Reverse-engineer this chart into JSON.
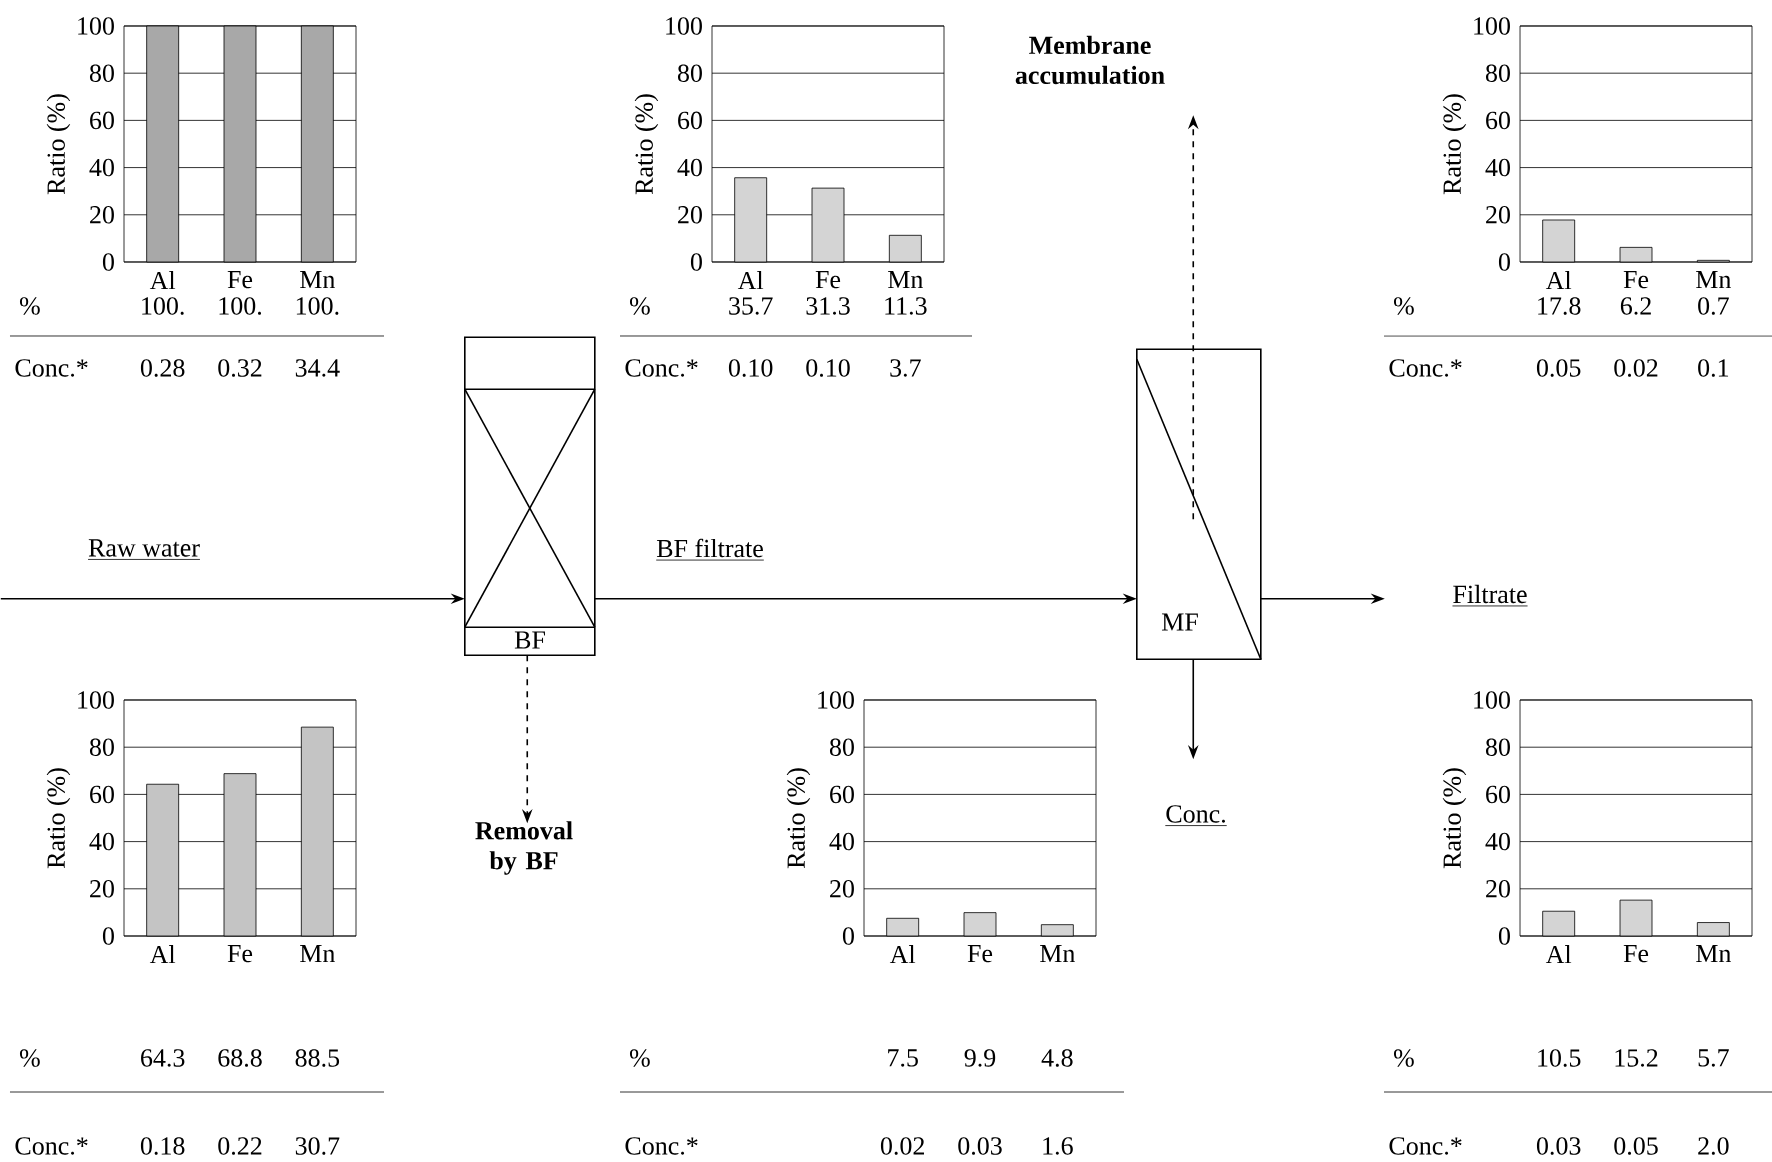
{
  "chart_data": [
    {
      "type": "bar",
      "ylabel": "Ratio (%)",
      "categories": [
        "Al",
        "Fe",
        "Mn"
      ],
      "values": [
        100,
        100,
        100
      ],
      "value_labels": [
        "100.",
        "100.",
        "100."
      ],
      "color": "#a8a8a8",
      "ylim": [
        0,
        100
      ],
      "yticks": [
        0,
        20,
        40,
        60,
        80,
        100
      ],
      "grid": "y",
      "annotations": [
        "%",
        "Conc.*",
        "0.28",
        "0.32",
        "34.4"
      ]
    },
    {
      "type": "bar",
      "ylabel": "Ratio (%)",
      "categories": [
        "Al",
        "Fe",
        "Mn"
      ],
      "values": [
        35.7,
        31.3,
        11.3
      ],
      "value_labels": [
        "35.7",
        "31.3",
        "11.3"
      ],
      "color": "#d4d4d4",
      "ylim": [
        0,
        100
      ],
      "yticks": [
        0,
        20,
        40,
        60,
        80,
        100
      ],
      "grid": "y",
      "annotations": [
        "%",
        "Conc.*",
        "0.10",
        "0.10",
        "3.7"
      ]
    },
    {
      "type": "bar",
      "ylabel": "Ratio (%)",
      "categories": [
        "Al",
        "Fe",
        "Mn"
      ],
      "values": [
        17.8,
        6.2,
        0.7
      ],
      "value_labels": [
        "17.8",
        "6.2",
        "0.7"
      ],
      "color": "#d4d4d4",
      "ylim": [
        0,
        100
      ],
      "yticks": [
        0,
        20,
        40,
        60,
        80,
        100
      ],
      "grid": "y",
      "annotations": [
        "%",
        "Conc.*",
        "0.05",
        "0.02",
        "0.1"
      ]
    },
    {
      "type": "bar",
      "ylabel": "Ratio (%)",
      "categories": [
        "Al",
        "Fe",
        "Mn"
      ],
      "values": [
        64.3,
        68.8,
        88.5
      ],
      "value_labels": [
        "64.3",
        "68.8",
        "88.5"
      ],
      "color": "#c4c4c4",
      "ylim": [
        0,
        100
      ],
      "yticks": [
        0,
        20,
        40,
        60,
        80,
        100
      ],
      "grid": "y",
      "annotations": [
        "%",
        "Conc.*",
        "0.18",
        "0.22",
        "30.7"
      ]
    },
    {
      "type": "bar",
      "ylabel": "Ratio (%)",
      "categories": [
        "Al",
        "Fe",
        "Mn"
      ],
      "values": [
        7.5,
        9.9,
        4.8
      ],
      "value_labels": [
        "7.5",
        "9.9",
        "4.8"
      ],
      "color": "#d4d4d4",
      "ylim": [
        0,
        100
      ],
      "yticks": [
        0,
        20,
        40,
        60,
        80,
        100
      ],
      "grid": "y",
      "annotations": [
        "%",
        "Conc.*",
        "0.02",
        "0.03",
        "1.6"
      ]
    },
    {
      "type": "bar",
      "ylabel": "Ratio (%)",
      "categories": [
        "Al",
        "Fe",
        "Mn"
      ],
      "values": [
        10.5,
        15.2,
        5.7
      ],
      "value_labels": [
        "10.5",
        "15.2",
        "5.7"
      ],
      "color": "#d4d4d4",
      "ylim": [
        0,
        100
      ],
      "yticks": [
        0,
        20,
        40,
        60,
        80,
        100
      ],
      "grid": "y",
      "annotations": [
        "%",
        "Conc.*",
        "0.03",
        "0.05",
        "2.0"
      ]
    },
    {
      "type": "other",
      "annotations": [
        "Raw water",
        "BF filtrate",
        "Filtrate",
        "Removal by BF",
        "Membrane accumulation",
        "Conc.",
        "BF",
        "MF"
      ]
    }
  ]
}
